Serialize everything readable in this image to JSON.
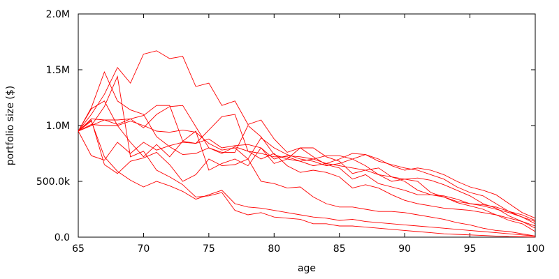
{
  "chart_data": {
    "type": "line",
    "title": "",
    "xlabel": "age",
    "ylabel": "portfolio size ($)",
    "xlim": [
      65,
      100
    ],
    "ylim": [
      0,
      2000000
    ],
    "x_ticks": [
      65,
      70,
      75,
      80,
      85,
      90,
      95,
      100
    ],
    "x_tick_labels": [
      "65",
      "70",
      "75",
      "80",
      "85",
      "90",
      "95",
      "100"
    ],
    "y_ticks": [
      0,
      500000,
      1000000,
      1500000,
      2000000
    ],
    "y_tick_labels": [
      "0.0",
      "500.0k",
      "1.0M",
      "1.5M",
      "2.0M"
    ],
    "grid": false,
    "legend": "none",
    "line_color": "#ff0000",
    "series": [
      {
        "values": [
          950000,
          1000000,
          1050000,
          1050000,
          1060000,
          980000,
          1100000,
          1170000,
          1180000,
          990000,
          800000,
          750000,
          810000,
          770000,
          700000,
          750000,
          640000,
          580000,
          600000,
          580000,
          540000,
          440000,
          470000,
          440000,
          380000,
          330000,
          300000,
          280000,
          260000,
          250000,
          240000,
          220000,
          200000,
          170000,
          140000,
          100000
        ]
      },
      {
        "values": [
          950000,
          1160000,
          1480000,
          1220000,
          1140000,
          1100000,
          900000,
          810000,
          740000,
          750000,
          800000,
          760000,
          760000,
          1000000,
          900000,
          740000,
          700000,
          680000,
          700000,
          660000,
          640000,
          620000,
          600000,
          560000,
          500000,
          520000,
          530000,
          510000,
          470000,
          420000,
          370000,
          300000,
          260000,
          190000,
          140000,
          80000
        ]
      },
      {
        "values": [
          950000,
          730000,
          690000,
          850000,
          750000,
          850000,
          780000,
          820000,
          850000,
          840000,
          880000,
          800000,
          820000,
          830000,
          800000,
          700000,
          730000,
          720000,
          700000,
          730000,
          730000,
          700000,
          740000,
          680000,
          650000,
          620000,
          600000,
          560000,
          520000,
          450000,
          400000,
          370000,
          300000,
          230000,
          180000,
          120000
        ]
      },
      {
        "values": [
          950000,
          1010000,
          1000000,
          1000000,
          1040000,
          1000000,
          950000,
          940000,
          960000,
          940000,
          840000,
          780000,
          800000,
          700000,
          890000,
          800000,
          740000,
          700000,
          680000,
          640000,
          660000,
          700000,
          640000,
          560000,
          540000,
          500000,
          420000,
          380000,
          360000,
          310000,
          280000,
          250000,
          200000,
          150000,
          120000,
          50000
        ]
      },
      {
        "values": [
          950000,
          1050000,
          650000,
          570000,
          680000,
          710000,
          760000,
          650000,
          500000,
          560000,
          700000,
          640000,
          650000,
          700000,
          500000,
          480000,
          440000,
          450000,
          360000,
          300000,
          270000,
          270000,
          250000,
          230000,
          230000,
          220000,
          200000,
          180000,
          160000,
          130000,
          110000,
          80000,
          60000,
          50000,
          30000,
          10000
        ]
      },
      {
        "values": [
          950000,
          1000000,
          1170000,
          1440000,
          720000,
          770000,
          600000,
          540000,
          470000,
          360000,
          370000,
          400000,
          240000,
          200000,
          220000,
          180000,
          170000,
          160000,
          120000,
          120000,
          100000,
          100000,
          90000,
          80000,
          70000,
          60000,
          50000,
          40000,
          30000,
          25000,
          20000,
          15000,
          10000,
          5000,
          3000,
          1000
        ]
      },
      {
        "values": [
          950000,
          1150000,
          1220000,
          1000000,
          850000,
          720000,
          830000,
          720000,
          860000,
          950000,
          600000,
          660000,
          700000,
          640000,
          800000,
          660000,
          700000,
          800000,
          720000,
          650000,
          620000,
          520000,
          560000,
          480000,
          450000,
          420000,
          380000,
          380000,
          370000,
          340000,
          300000,
          280000,
          250000,
          220000,
          180000,
          140000
        ]
      },
      {
        "values": [
          950000,
          1100000,
          1280000,
          1520000,
          1380000,
          1640000,
          1670000,
          1600000,
          1620000,
          1350000,
          1380000,
          1180000,
          1220000,
          1010000,
          1050000,
          880000,
          760000,
          800000,
          800000,
          720000,
          680000,
          570000,
          600000,
          620000,
          540000,
          520000,
          500000,
          400000,
          360000,
          320000,
          300000,
          290000,
          270000,
          230000,
          200000,
          150000
        ]
      },
      {
        "values": [
          950000,
          1060000,
          1050000,
          1010000,
          1060000,
          1090000,
          1180000,
          1180000,
          860000,
          840000,
          960000,
          1080000,
          1100000,
          770000,
          750000,
          720000,
          720000,
          680000,
          640000,
          660000,
          700000,
          750000,
          740000,
          700000,
          640000,
          600000,
          620000,
          600000,
          560000,
          500000,
          450000,
          420000,
          380000,
          300000,
          220000,
          170000
        ]
      },
      {
        "values": [
          950000,
          1040000,
          720000,
          590000,
          510000,
          450000,
          500000,
          460000,
          410000,
          340000,
          380000,
          420000,
          300000,
          270000,
          260000,
          240000,
          220000,
          200000,
          180000,
          170000,
          150000,
          160000,
          140000,
          130000,
          120000,
          110000,
          100000,
          90000,
          80000,
          70000,
          60000,
          50000,
          40000,
          30000,
          20000,
          10000
        ]
      }
    ]
  }
}
